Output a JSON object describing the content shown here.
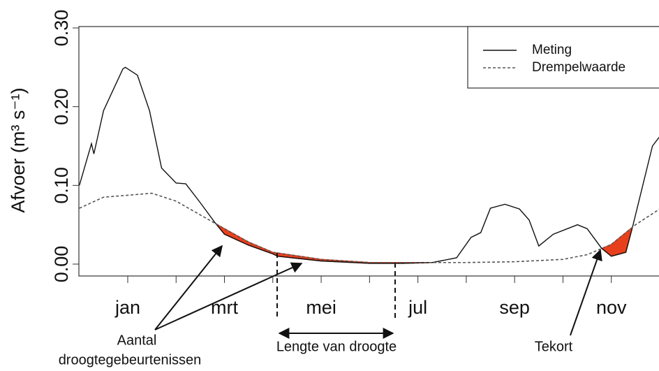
{
  "chart_data": {
    "type": "line",
    "y_label": "Afvoer (m³ s⁻¹)",
    "xlim": [
      0,
      12
    ],
    "ylim": [
      0,
      0.3
    ],
    "xticks": [
      {
        "value": 1,
        "label": "jan"
      },
      {
        "value": 3,
        "label": "mrt"
      },
      {
        "value": 5,
        "label": "mei"
      },
      {
        "value": 7,
        "label": "jul"
      },
      {
        "value": 9,
        "label": "sep"
      },
      {
        "value": 11,
        "label": "nov"
      }
    ],
    "xminor_ticks": [
      2,
      4,
      6,
      8,
      10
    ],
    "yticks": [
      {
        "value": 0,
        "label": "0.00"
      },
      {
        "value": 0.1,
        "label": "0.10"
      },
      {
        "value": 0.2,
        "label": "0.20"
      },
      {
        "value": 0.3,
        "label": "0.30"
      }
    ],
    "deficit_color": "#e8401c",
    "series": [
      {
        "name": "Meting",
        "color": "#111111",
        "dash": "solid",
        "x": [
          0,
          0.25,
          0.3,
          0.5,
          0.9,
          0.95,
          1.2,
          1.45,
          1.7,
          2.0,
          2.2,
          2.5,
          2.8,
          3.0,
          3.5,
          4.0,
          4.1,
          5.0,
          6.0,
          6.7,
          7.3,
          7.8,
          8.1,
          8.3,
          8.5,
          8.8,
          9.1,
          9.3,
          9.5,
          9.8,
          10.3,
          10.5,
          10.8,
          11.0,
          11.3,
          11.45,
          11.65,
          11.85,
          12
        ],
        "values": [
          0.1,
          0.153,
          0.14,
          0.195,
          0.248,
          0.25,
          0.24,
          0.195,
          0.122,
          0.103,
          0.102,
          0.078,
          0.053,
          0.038,
          0.024,
          0.013,
          0.01,
          0.004,
          0.001,
          0.001,
          0.002,
          0.008,
          0.034,
          0.04,
          0.071,
          0.076,
          0.07,
          0.056,
          0.023,
          0.038,
          0.05,
          0.045,
          0.02,
          0.01,
          0.015,
          0.05,
          0.1,
          0.15,
          0.162
        ]
      },
      {
        "name": "Drempelwaarde",
        "color": "#555555",
        "dash": "dashed",
        "x": [
          0,
          0.5,
          1.5,
          2,
          3,
          3.5,
          4,
          5,
          6,
          7,
          8,
          9,
          10,
          10.5,
          11,
          11.5,
          12
        ],
        "values": [
          0.071,
          0.085,
          0.09,
          0.08,
          0.045,
          0.028,
          0.015,
          0.006,
          0.002,
          0.002,
          0.002,
          0.003,
          0.006,
          0.012,
          0.025,
          0.05,
          0.07
        ]
      }
    ],
    "annotations": {
      "events": "Aantal",
      "events2": "droogtegebeurtenissen",
      "length": "Lengte van droogte",
      "deficit": "Tekort"
    }
  }
}
